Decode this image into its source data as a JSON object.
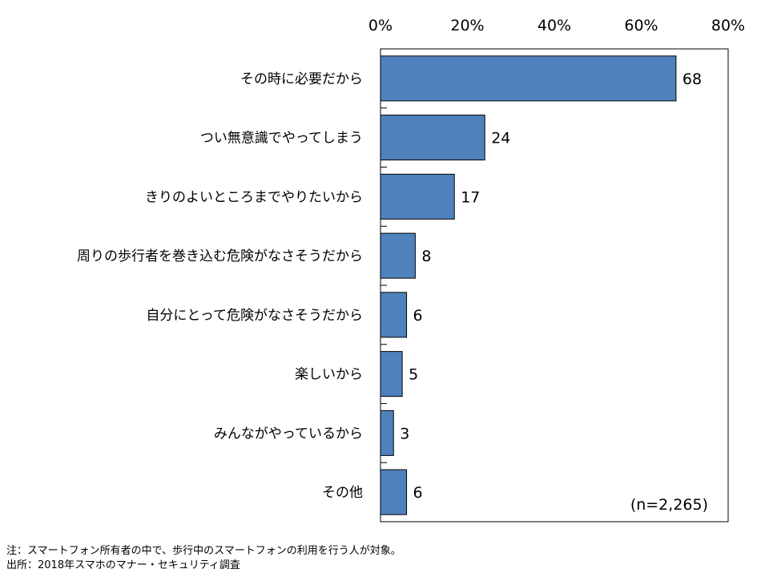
{
  "chart_data": {
    "type": "bar",
    "orientation": "horizontal",
    "categories": [
      "その時に必要だから",
      "つい無意識でやってしまう",
      "きりのよいところまでやりたいから",
      "周りの歩行者を巻き込む危険がなさそうだから",
      "自分にとって危険がなさそうだから",
      "楽しいから",
      "みんながやっているから",
      "その他"
    ],
    "values": [
      68,
      24,
      17,
      8,
      6,
      5,
      3,
      6
    ],
    "xlim": [
      0,
      80
    ],
    "x_ticks": [
      0,
      20,
      40,
      60,
      80
    ],
    "x_tick_labels": [
      "0%",
      "20%",
      "40%",
      "60%",
      "80%"
    ],
    "x_axis_position": "top",
    "grid": false,
    "legend": "none",
    "annotation": "(n=2,265)",
    "bar_color": "#4f81bd",
    "bar_border_color": "#000000"
  },
  "notes": {
    "note": "注：スマートフォン所有者の中で、歩行中のスマートフォンの利用を行う人が対象。",
    "source": "出所：2018年スマホのマナー・セキュリティ調査"
  }
}
